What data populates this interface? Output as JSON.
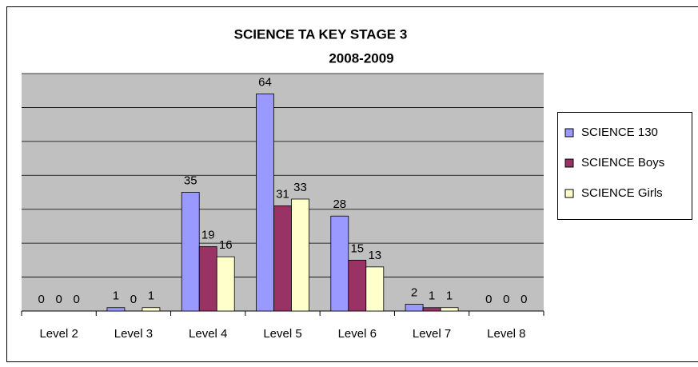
{
  "chart_data": {
    "type": "bar",
    "title": "SCIENCE TA KEY STAGE 3",
    "subtitle": "2008-2009",
    "categories": [
      "Level 2",
      "Level 3",
      "Level 4",
      "Level 5",
      "Level 6",
      "Level 7",
      "Level 8"
    ],
    "series": [
      {
        "name": "SCIENCE 130",
        "color": "#9999ff",
        "values": [
          0,
          1,
          35,
          64,
          28,
          2,
          0
        ]
      },
      {
        "name": "SCIENCE Boys",
        "color": "#993366",
        "values": [
          0,
          0,
          19,
          31,
          15,
          1,
          0
        ]
      },
      {
        "name": "SCIENCE Girls",
        "color": "#ffffcc",
        "values": [
          0,
          1,
          16,
          33,
          13,
          1,
          0
        ]
      }
    ],
    "ylim": [
      0,
      70
    ],
    "yticks": [
      0,
      10,
      20,
      30,
      40,
      50,
      60,
      70
    ],
    "grid": true,
    "legend": "right"
  }
}
